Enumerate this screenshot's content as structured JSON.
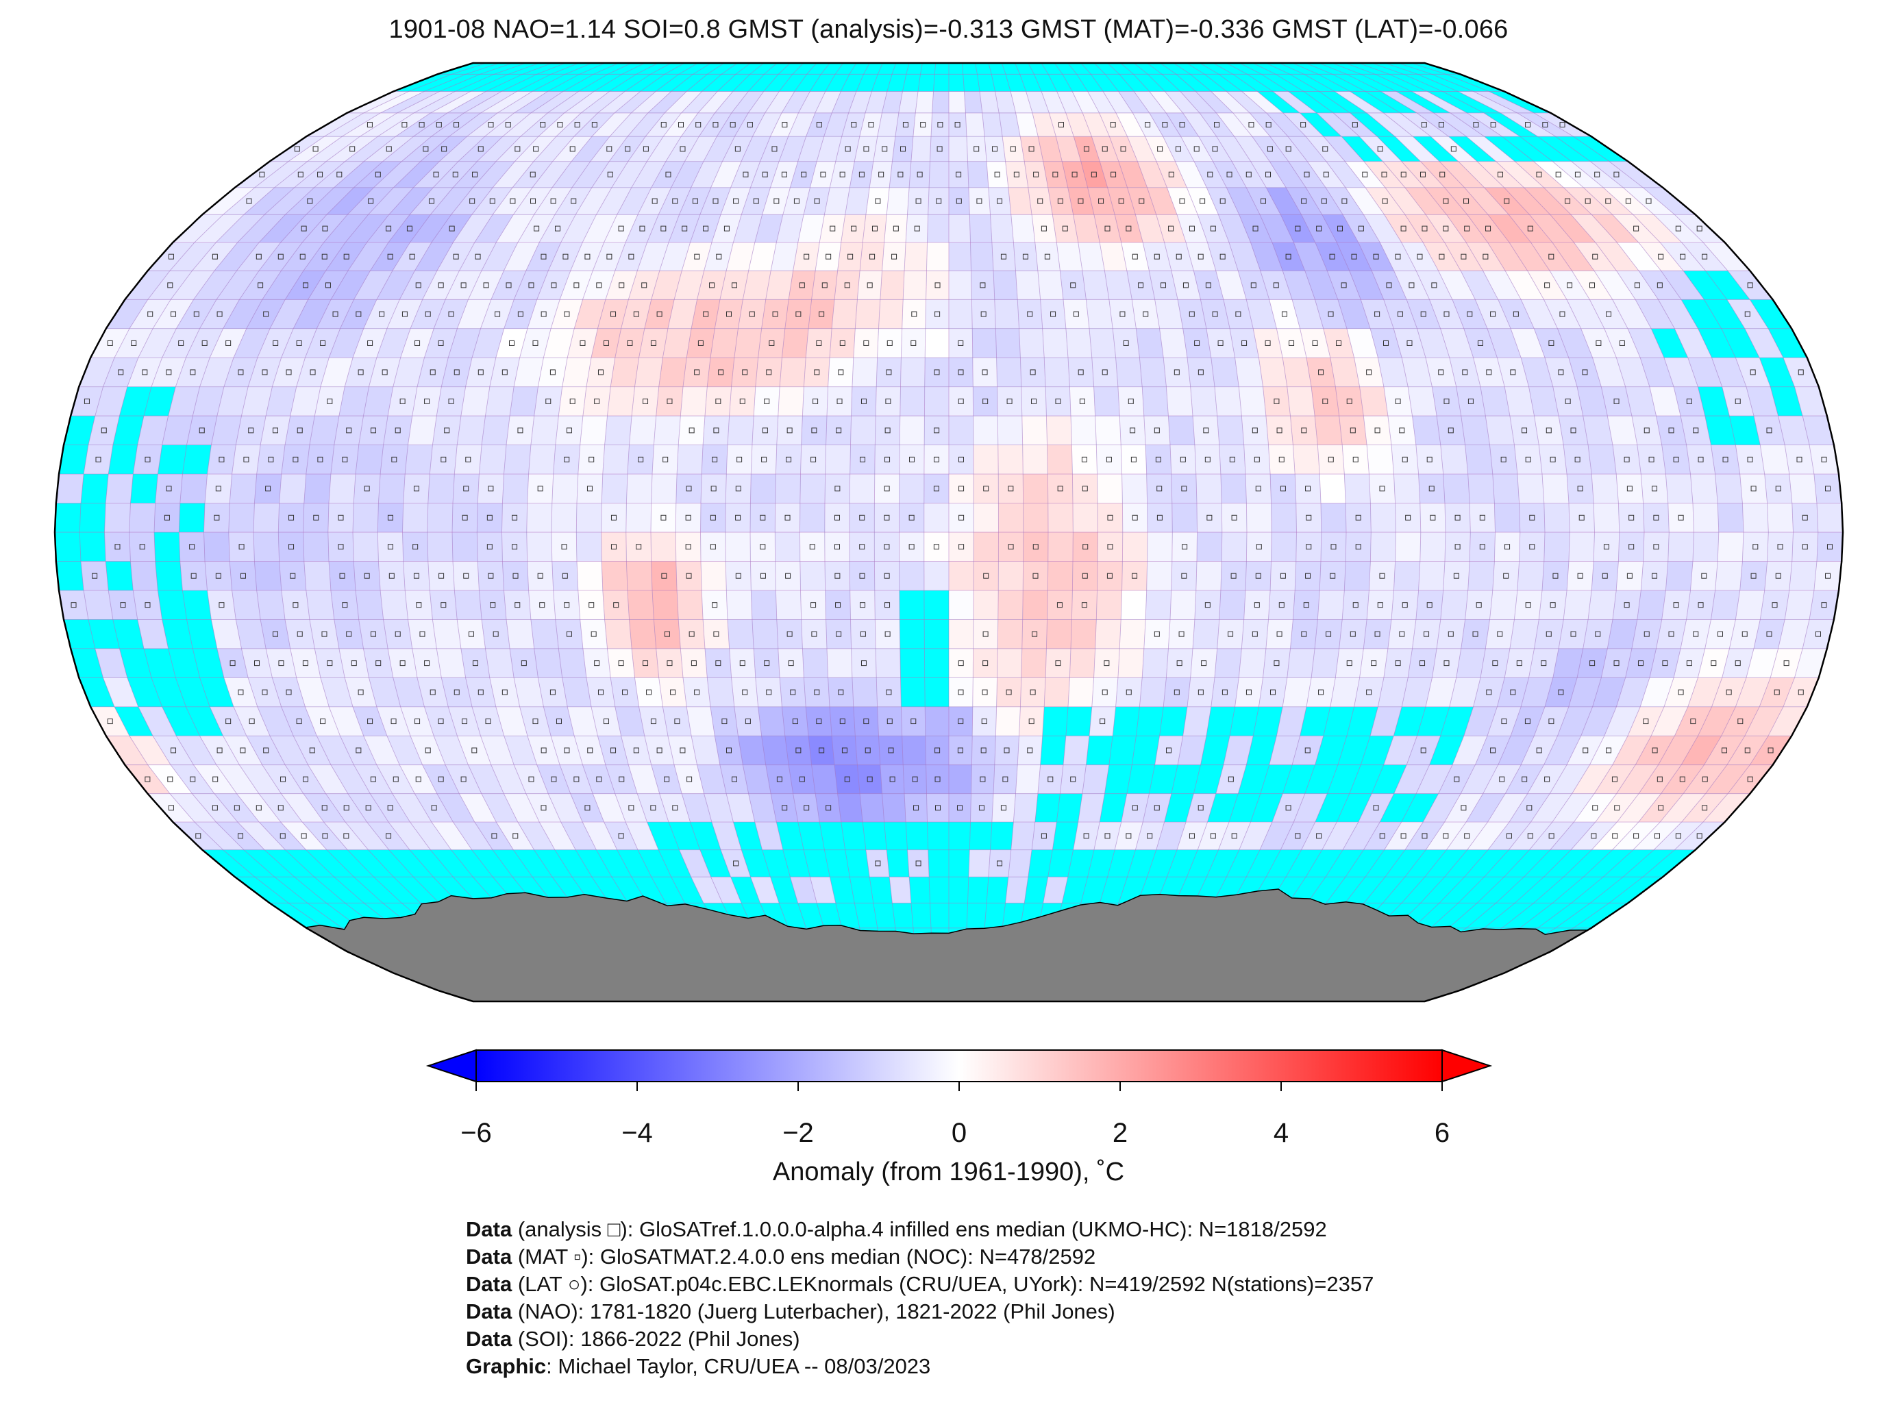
{
  "title": "1901-08 NAO=1.14 SOI=0.8 GMST (analysis)=-0.313 GMST (MAT)=-0.336 GMST (LAT)=-0.066",
  "map": {
    "projection": "Robinson",
    "missing_color": "#00ffff",
    "antarctica_color": "#808080",
    "grid_resolution_deg": 5,
    "anomaly_patches": [
      {
        "region": "North Pacific / NW America",
        "lon": [
          -170,
          -110
        ],
        "lat": [
          35,
          70
        ],
        "value": -1.5
      },
      {
        "region": "US East / W Atlantic",
        "lon": [
          -90,
          -20
        ],
        "lat": [
          20,
          45
        ],
        "value": 1.2
      },
      {
        "region": "Central North Atlantic",
        "lon": [
          -40,
          0
        ],
        "lat": [
          30,
          55
        ],
        "value": 0.6
      },
      {
        "region": "Scandinavia / W Russia",
        "lon": [
          15,
          60
        ],
        "lat": [
          50,
          72
        ],
        "value": 1.8
      },
      {
        "region": "Central Siberia",
        "lon": [
          70,
          100
        ],
        "lat": [
          40,
          60
        ],
        "value": -2.0
      },
      {
        "region": "NE Asia / Japan",
        "lon": [
          100,
          170
        ],
        "lat": [
          45,
          65
        ],
        "value": 1.5
      },
      {
        "region": "South America interior",
        "lon": [
          -70,
          -50
        ],
        "lat": [
          -25,
          0
        ],
        "value": 1.6
      },
      {
        "region": "Africa interior",
        "lon": [
          0,
          40
        ],
        "lat": [
          -35,
          20
        ],
        "value": 1.2
      },
      {
        "region": "Indian subcontinent",
        "lon": [
          65,
          90
        ],
        "lat": [
          10,
          35
        ],
        "value": 1.0
      },
      {
        "region": "South Atlantic",
        "lon": [
          -50,
          10
        ],
        "lat": [
          -50,
          -30
        ],
        "value": -2.5
      },
      {
        "region": "SW Pacific / New Zealand",
        "lon": [
          140,
          190
        ],
        "lat": [
          -50,
          -25
        ],
        "value": 1.5
      },
      {
        "region": "Tropical Pacific",
        "lon": [
          -180,
          -90
        ],
        "lat": [
          -20,
          20
        ],
        "value": -1.0
      },
      {
        "region": "Australia",
        "lon": [
          115,
          155
        ],
        "lat": [
          -40,
          -15
        ],
        "value": -1.2
      }
    ]
  },
  "colorbar": {
    "label": "Anomaly (from 1961-1990), ˚C",
    "min": -6,
    "max": 6,
    "ticks": [
      "−6",
      "−4",
      "−2",
      "0",
      "2",
      "4",
      "6"
    ],
    "colors": [
      "#0000ff",
      "#ffffff",
      "#ff0000"
    ]
  },
  "credits": [
    {
      "bold": "Data",
      "text": " (analysis □): GloSATref.1.0.0.0-alpha.4 infilled ens median (UKMO-HC): N=1818/2592"
    },
    {
      "bold": "Data",
      "text": " (MAT ▫): GloSATMAT.2.4.0.0 ens median (NOC): N=478/2592"
    },
    {
      "bold": "Data",
      "text": " (LAT ○): GloSAT.p04c.EBC.LEKnormals (CRU/UEA, UYork): N=419/2592 N(stations)=2357"
    },
    {
      "bold": "Data",
      "text": " (NAO): 1781-1820 (Juerg Luterbacher), 1821-2022 (Phil Jones)"
    },
    {
      "bold": "Data",
      "text": " (SOI): 1866-2022 (Phil Jones)"
    },
    {
      "bold": "Graphic",
      "text": ": Michael Taylor, CRU/UEA -- 08/03/2023"
    }
  ]
}
